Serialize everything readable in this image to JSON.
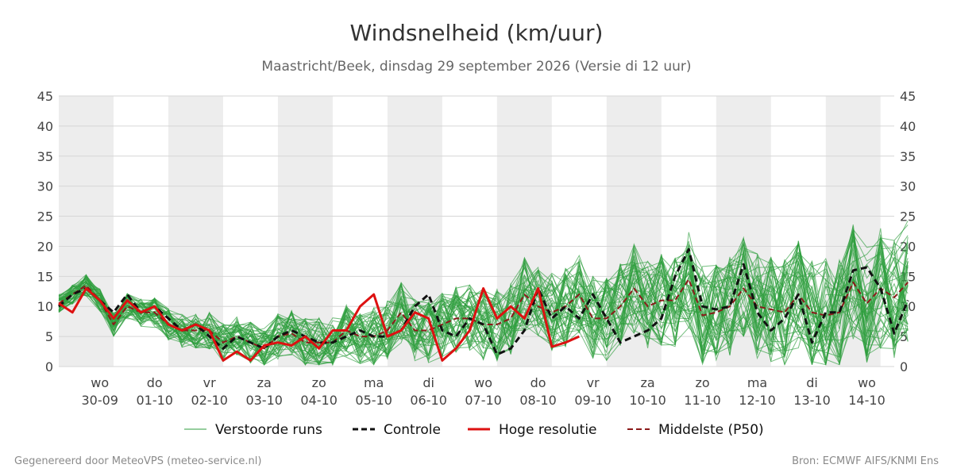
{
  "chart_data": {
    "type": "line",
    "title": "Windsnelheid (km/uur)",
    "subtitle": "Maastricht/Beek, dinsdag 29 september 2026 (Versie di 12 uur)",
    "ylim": [
      0,
      45
    ],
    "yticks": [
      0,
      5,
      10,
      15,
      20,
      25,
      30,
      35,
      40,
      45
    ],
    "grid": true,
    "legend_position": "bottom",
    "x_range_days": [
      -0.75,
      14.5
    ],
    "x_ticks": [
      {
        "day": "wo",
        "date": "30-09"
      },
      {
        "day": "do",
        "date": "01-10"
      },
      {
        "day": "vr",
        "date": "02-10"
      },
      {
        "day": "za",
        "date": "03-10"
      },
      {
        "day": "zo",
        "date": "04-10"
      },
      {
        "day": "ma",
        "date": "05-10"
      },
      {
        "day": "di",
        "date": "06-10"
      },
      {
        "day": "wo",
        "date": "07-10"
      },
      {
        "day": "do",
        "date": "08-10"
      },
      {
        "day": "vr",
        "date": "09-10"
      },
      {
        "day": "za",
        "date": "10-10"
      },
      {
        "day": "zo",
        "date": "11-10"
      },
      {
        "day": "ma",
        "date": "12-10"
      },
      {
        "day": "di",
        "date": "13-10"
      },
      {
        "day": "wo",
        "date": "14-10"
      }
    ],
    "x_step_days": 0.25,
    "series": [
      {
        "name": "Controle",
        "color": "#111111",
        "style": "dashed",
        "values": [
          10,
          12,
          13,
          11,
          9,
          12,
          9,
          10,
          8,
          6,
          7,
          5,
          3,
          5,
          4,
          3,
          5,
          6,
          5,
          4,
          4,
          5,
          6,
          5,
          5,
          6,
          10,
          12,
          6,
          5,
          8,
          7,
          2,
          3,
          6,
          13,
          8,
          10,
          8,
          12,
          8,
          4,
          5,
          6,
          8,
          15,
          19.5,
          10,
          9.5,
          10,
          17,
          9,
          6,
          8,
          12,
          4,
          9,
          9,
          16,
          16.5,
          13,
          5.5,
          11
        ]
      },
      {
        "name": "Hoge resolutie",
        "color": "#dd1111",
        "style": "solid",
        "values": [
          10.5,
          9,
          13,
          11,
          8,
          11,
          9,
          10,
          7,
          6,
          7,
          6,
          1,
          2.5,
          1,
          3.5,
          4,
          3.5,
          5,
          3,
          6,
          6,
          10,
          12,
          5,
          6,
          9,
          8,
          1,
          3,
          6,
          13,
          8,
          10,
          8,
          13,
          3.3,
          4,
          5
        ]
      },
      {
        "name": "Middelste (P50)",
        "color": "#8b1a1a",
        "style": "dashed",
        "values": [
          10.5,
          12,
          13.5,
          11,
          7,
          10,
          9,
          9,
          7,
          6,
          6,
          6,
          4,
          5,
          4,
          3,
          5,
          5.5,
          4,
          4,
          4,
          6,
          5,
          5,
          6,
          9,
          6,
          6,
          7,
          8,
          8,
          7,
          7,
          8,
          12,
          10,
          9,
          10,
          12,
          8,
          8,
          10,
          13,
          10,
          11,
          11,
          14.5,
          8.5,
          9,
          10,
          13,
          10,
          9.5,
          9,
          12,
          9,
          8.5,
          9,
          14,
          10.5,
          13,
          11.5,
          14
        ]
      }
    ],
    "ensemble": {
      "name": "Verstoorde runs",
      "color": "#2e9e3e",
      "member_count": 50
    }
  },
  "legend": {
    "ensemble": "Verstoorde runs",
    "control": "Controle",
    "hires": "Hoge resolutie",
    "median": "Middelste (P50)"
  },
  "footer": {
    "left": "Gegenereerd door MeteoVPS (meteo-service.nl)",
    "right": "Bron: ECMWF AIFS/KNMI Ens"
  }
}
